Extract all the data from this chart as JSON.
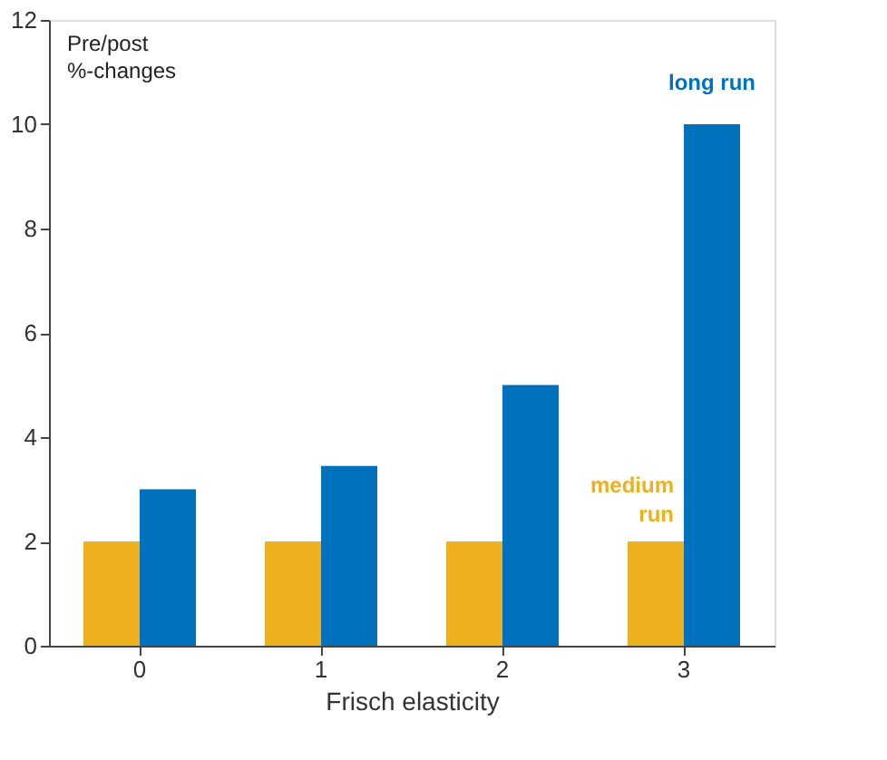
{
  "chart_data": {
    "type": "bar",
    "xlabel": "Frisch elasticity",
    "ylabel": "Pre/post %-changes",
    "categories": [
      "0",
      "1",
      "2",
      "3"
    ],
    "series": [
      {
        "name": "medium run",
        "color": "#edb120",
        "values": [
          2,
          2,
          2,
          2
        ]
      },
      {
        "name": "long run",
        "color": "#0072bd",
        "values": [
          3,
          3.45,
          5,
          10
        ]
      }
    ],
    "ylim": [
      0,
      12
    ],
    "yticks": [
      0,
      2,
      4,
      6,
      8,
      10,
      12
    ],
    "grid": false
  }
}
